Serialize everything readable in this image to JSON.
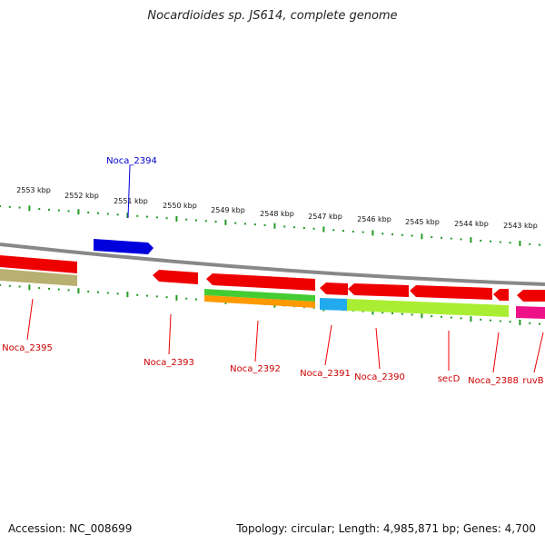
{
  "title": "Nocardioides sp. JS614, complete genome",
  "footer": {
    "accession": "Accession: NC_008699",
    "summary": "Topology: circular; Length: 4,985,871 bp; Genes: 4,700"
  },
  "ruler_labels": [
    "2553 kbp",
    "2552 kbp",
    "2551 kbp",
    "2550 kbp",
    "2549 kbp",
    "2548 kbp",
    "2547 kbp",
    "2546 kbp",
    "2545 kbp",
    "2544 kbp",
    "2543 kbp"
  ],
  "genes": [
    {
      "id": "Noca_2394",
      "label": "Noca_2394",
      "strand": "forward",
      "label_color": "#0000cc"
    },
    {
      "id": "Noca_2395",
      "label": "Noca_2395",
      "strand": "reverse",
      "label_color": "#cc0000"
    },
    {
      "id": "Noca_2393",
      "label": "Noca_2393",
      "strand": "reverse",
      "label_color": "#cc0000"
    },
    {
      "id": "Noca_2392",
      "label": "Noca_2392",
      "strand": "reverse",
      "label_color": "#cc0000"
    },
    {
      "id": "Noca_2391",
      "label": "Noca_2391",
      "strand": "reverse",
      "label_color": "#cc0000"
    },
    {
      "id": "Noca_2390",
      "label": "Noca_2390",
      "strand": "reverse",
      "label_color": "#cc0000"
    },
    {
      "id": "secD",
      "label": "secD",
      "strand": "reverse",
      "label_color": "#cc0000"
    },
    {
      "id": "Noca_2388",
      "label": "Noca_2388",
      "strand": "reverse",
      "label_color": "#cc0000"
    },
    {
      "id": "ruvB",
      "label": "ruvB",
      "strand": "reverse",
      "label_color": "#cc0000"
    }
  ],
  "colors": {
    "backbone": "#888888",
    "gene_reverse": "#ee0000",
    "gene_forward": "#0000dd",
    "ticks": "#229922",
    "feature_olive": "#b8b070",
    "feature_green": "#44cc33",
    "feature_orange": "#ff9900",
    "feature_cyan": "#22aaee",
    "feature_lime": "#aaee33",
    "feature_magenta": "#ee1188"
  }
}
